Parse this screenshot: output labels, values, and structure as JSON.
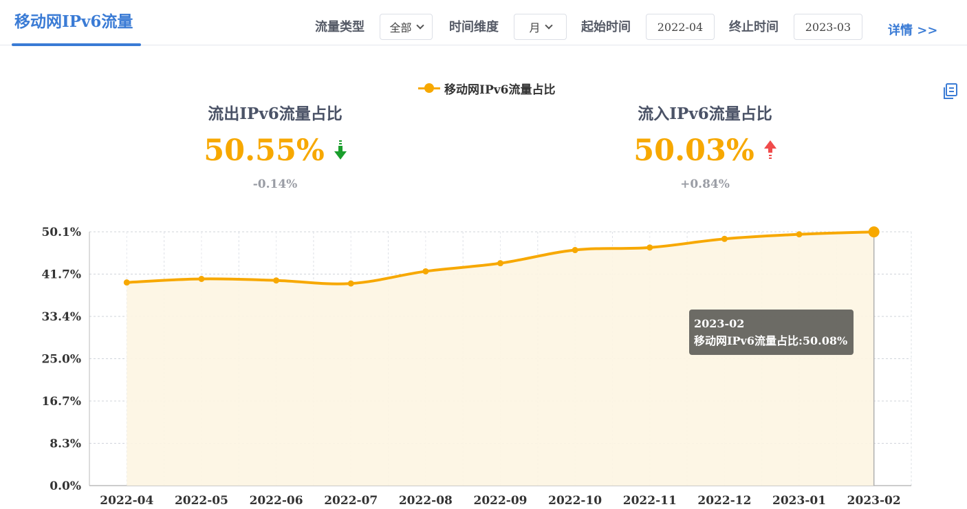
{
  "header": {
    "title": "移动网IPv6流量",
    "filters": {
      "traffic_type_label": "流量类型",
      "traffic_type_value": "全部",
      "time_dim_label": "时间维度",
      "time_dim_value": "月",
      "start_label": "起始时间",
      "start_value": "2022-04",
      "end_label": "终止时间",
      "end_value": "2023-03"
    },
    "detail_link": "详情 >>"
  },
  "kpis": {
    "outflow": {
      "title": "流出IPv6流量占比",
      "value": "50.55%",
      "change": "-0.14%",
      "trend": "down",
      "trend_color": "#1a9e2c"
    },
    "inflow": {
      "title": "流入IPv6流量占比",
      "value": "50.03%",
      "change": "+0.84%",
      "trend": "up",
      "trend_color": "#f04b4b"
    }
  },
  "tooltip": {
    "title": "2023-02",
    "line": "移动网IPv6流量占比:50.08%"
  },
  "colors": {
    "accent": "#3a7bd5",
    "series": "#f7a800",
    "area": "#fdf5e2"
  },
  "icons": {
    "copy": "copy-icon",
    "chevron": "chevron-down-icon"
  },
  "chart_data": {
    "type": "area",
    "legend": "top-center",
    "grid": true,
    "series": [
      {
        "name": "移动网IPv6流量占比",
        "values": [
          40.1,
          40.8,
          40.5,
          39.9,
          42.3,
          43.9,
          46.5,
          47.0,
          48.7,
          49.6,
          50.08
        ]
      }
    ],
    "categories": [
      "2022-04",
      "2022-05",
      "2022-06",
      "2022-07",
      "2022-08",
      "2022-09",
      "2022-10",
      "2022-11",
      "2022-12",
      "2023-01",
      "2023-02"
    ],
    "y_ticks": [
      "0.0%",
      "8.3%",
      "16.7%",
      "25.0%",
      "33.4%",
      "41.7%",
      "50.1%"
    ],
    "ylim": [
      0,
      50.1
    ],
    "highlighted_index": 10
  }
}
